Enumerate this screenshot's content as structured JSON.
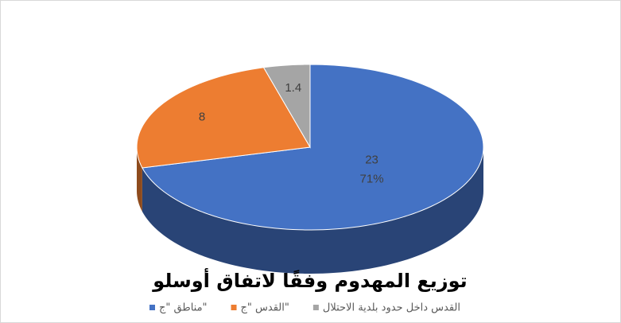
{
  "chart_data": {
    "type": "pie3d",
    "title": "توزيع المهدوم وفقًا لاتفاق أوسلو",
    "categories": [
      "مناطق \"ج\"",
      "القدس \"ج\"",
      "القدس داخل حدود بلدية الاحتلال"
    ],
    "values": [
      23,
      8,
      1.4
    ],
    "percent_labels": [
      "71%",
      null,
      null
    ],
    "colors": [
      "#4472c4",
      "#ed7d31",
      "#a5a5a5"
    ],
    "legend": "bottom"
  }
}
